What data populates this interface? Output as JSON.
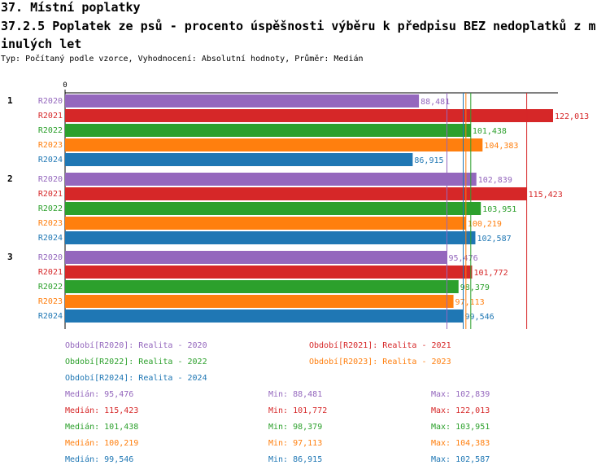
{
  "header": {
    "title": "37. Místní poplatky",
    "subtitle": "37.2.5 Poplatek ze psů - procento úspěšnosti výběru k předpisu BEZ nedoplatků z minulých let",
    "info": "Typ: Počítaný podle vzorce, Vyhodnocení: Absolutní hodnoty, Průměr: Medián"
  },
  "chart_data": {
    "type": "bar",
    "orientation": "horizontal",
    "axis_zero_label": "0",
    "groups": [
      "1",
      "2",
      "3"
    ],
    "series": [
      {
        "key": "R2020",
        "color": "#9467bd",
        "values": [
          88.481,
          102.839,
          95.476
        ]
      },
      {
        "key": "R2021",
        "color": "#d62728",
        "values": [
          122.013,
          115.423,
          101.772
        ]
      },
      {
        "key": "R2022",
        "color": "#2ca02c",
        "values": [
          101.438,
          103.951,
          98.379
        ]
      },
      {
        "key": "R2023",
        "color": "#ff7f0e",
        "values": [
          104.383,
          100.219,
          97.113
        ]
      },
      {
        "key": "R2024",
        "color": "#1f77b4",
        "values": [
          86.915,
          102.587,
          99.546
        ]
      }
    ],
    "value_labels": [
      [
        "88,481",
        "122,013",
        "101,438",
        "104,383",
        "86,915"
      ],
      [
        "102,839",
        "115,423",
        "103,951",
        "100,219",
        "102,587"
      ],
      [
        "95,476",
        "101,772",
        "98,379",
        "97,113",
        "99,546"
      ]
    ],
    "median_lines": [
      {
        "color": "#9467bd",
        "value": 95.476
      },
      {
        "color": "#d62728",
        "value": 115.423
      },
      {
        "color": "#2ca02c",
        "value": 101.438
      },
      {
        "color": "#ff7f0e",
        "value": 100.219
      },
      {
        "color": "#1f77b4",
        "value": 99.546
      }
    ],
    "xlim": [
      0,
      125
    ]
  },
  "legend": [
    {
      "text": "Období[R2020]: Realita - 2020",
      "color": "#9467bd"
    },
    {
      "text": "Období[R2021]: Realita - 2021",
      "color": "#d62728"
    },
    {
      "text": "Období[R2022]: Realita - 2022",
      "color": "#2ca02c"
    },
    {
      "text": "Období[R2023]: Realita - 2023",
      "color": "#ff7f0e"
    },
    {
      "text": "Období[R2024]: Realita - 2024",
      "color": "#1f77b4"
    }
  ],
  "stats": [
    {
      "color": "#9467bd",
      "median": "Medián: 95,476",
      "min": "Min: 88,481",
      "max": "Max: 102,839"
    },
    {
      "color": "#d62728",
      "median": "Medián: 115,423",
      "min": "Min: 101,772",
      "max": "Max: 122,013"
    },
    {
      "color": "#2ca02c",
      "median": "Medián: 101,438",
      "min": "Min: 98,379",
      "max": "Max: 103,951"
    },
    {
      "color": "#ff7f0e",
      "median": "Medián: 100,219",
      "min": "Min: 97,113",
      "max": "Max: 104,383"
    },
    {
      "color": "#1f77b4",
      "median": "Medián: 99,546",
      "min": "Min: 86,915",
      "max": "Max: 102,587"
    }
  ]
}
